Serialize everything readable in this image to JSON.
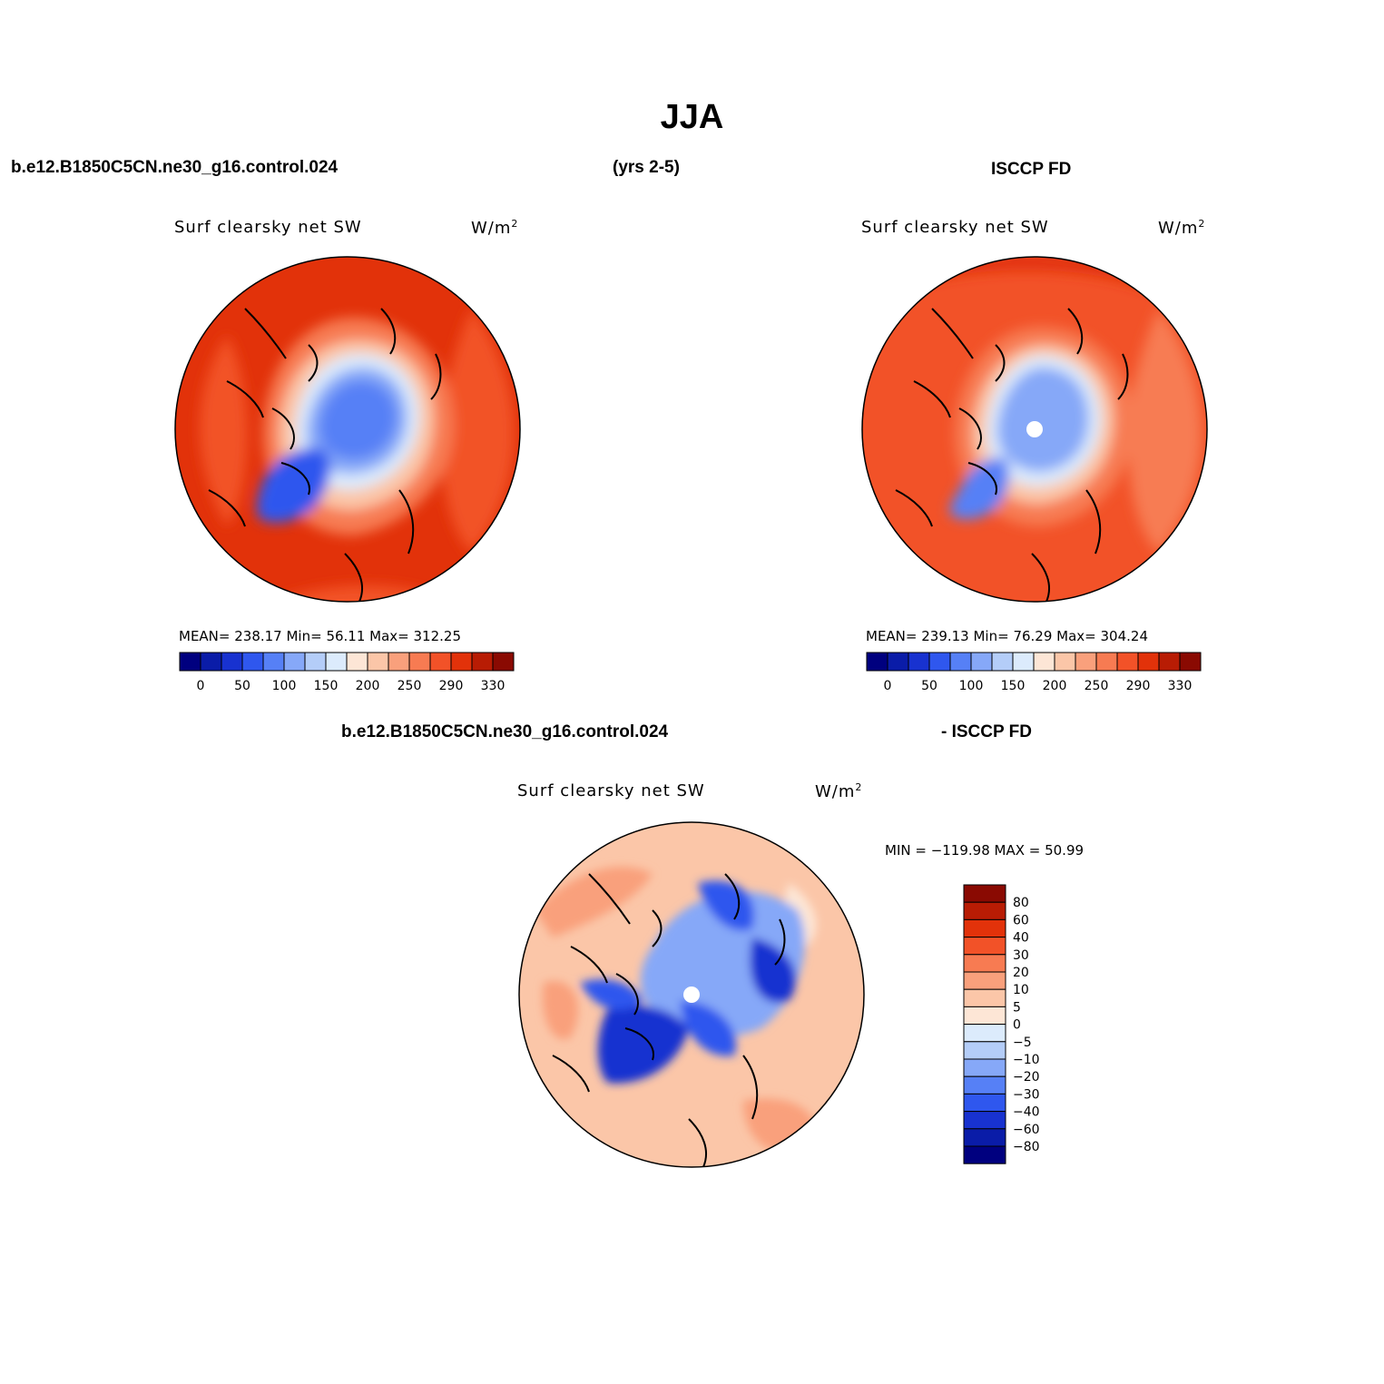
{
  "figure": {
    "title": "JJA",
    "case_name": "b.e12.B1850C5CN.ne30_g16.control.024",
    "years": "(yrs 2-5)",
    "obs_name": "ISCCP FD"
  },
  "panels": {
    "model": {
      "variable": "Surf  clearsky  net  SW",
      "units": "W/m",
      "units_sup": "2",
      "stats": "MEAN= 238.17    Min=   56.11    Max= 312.25"
    },
    "obs": {
      "variable": "Surf  clearsky  net  SW",
      "units": "W/m",
      "units_sup": "2",
      "stats": "MEAN= 239.13    Min=   76.29    Max= 304.24"
    },
    "diff": {
      "header_left": "b.e12.B1850C5CN.ne30_g16.control.024",
      "header_right": "- ISCCP FD",
      "variable": "Surf  clearsky  net  SW",
      "units": "W/m",
      "units_sup": "2",
      "stats": "MIN = −119.98 MAX =   50.99"
    }
  },
  "colorbars": {
    "field": {
      "colors": [
        "#00007f",
        "#0a1ca8",
        "#1832d0",
        "#2f57ee",
        "#5680f6",
        "#86a8f8",
        "#b4cdf8",
        "#dcebfc",
        "#fde6d6",
        "#fbc6a8",
        "#f9a07c",
        "#f77b52",
        "#f25228",
        "#e2320a",
        "#b81c04",
        "#8a0a02"
      ],
      "labels": [
        "0",
        "50",
        "100",
        "150",
        "200",
        "250",
        "290",
        "330"
      ]
    },
    "diff": {
      "colors": [
        "#8a0a02",
        "#b81c04",
        "#e2320a",
        "#f25228",
        "#f77b52",
        "#f9a07c",
        "#fbc6a8",
        "#fde6d6",
        "#dcebfc",
        "#b4cdf8",
        "#86a8f8",
        "#5680f6",
        "#2f57ee",
        "#1832d0",
        "#0a1ca8",
        "#00007f"
      ],
      "labels": [
        "80",
        "60",
        "40",
        "30",
        "20",
        "10",
        "5",
        "0",
        "−5",
        "−10",
        "−20",
        "−30",
        "−40",
        "−60",
        "−80"
      ]
    }
  }
}
